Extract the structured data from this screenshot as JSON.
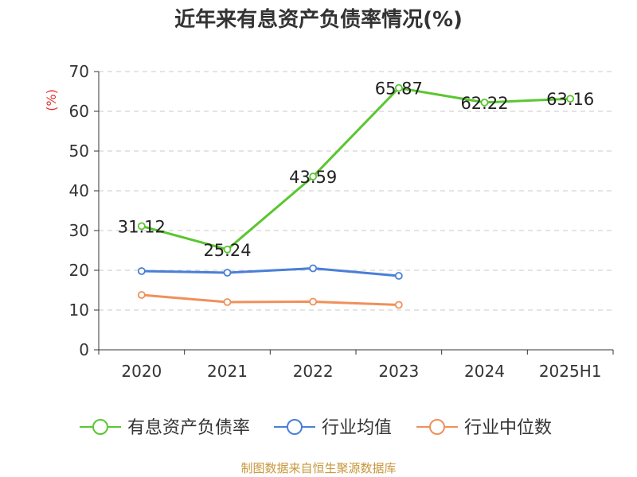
{
  "chart_data": {
    "type": "line",
    "title": "近年来有息资产负债率情况(%)",
    "ylabel": "(%)",
    "xlabel": "",
    "categories": [
      "2020",
      "2021",
      "2022",
      "2023",
      "2024",
      "2025H1"
    ],
    "ylim": [
      0,
      70
    ],
    "yticks": [
      0,
      10,
      20,
      30,
      40,
      50,
      60,
      70
    ],
    "grid": true,
    "legend_position": "bottom",
    "series": [
      {
        "name": "有息资产负债率",
        "color": "#5ac630",
        "values": [
          31.12,
          25.24,
          43.59,
          65.87,
          62.22,
          63.16
        ],
        "labels": [
          "31.12",
          "25.24",
          "43.59",
          "65.87",
          "62.22",
          "63.16"
        ]
      },
      {
        "name": "行业均值",
        "color": "#4a7fd8",
        "values": [
          19.8,
          19.4,
          20.5,
          18.6,
          null,
          null
        ]
      },
      {
        "name": "行业中位数",
        "color": "#f0905a",
        "values": [
          13.8,
          12.0,
          12.1,
          11.3,
          null,
          null
        ]
      }
    ],
    "source": "制图数据来自恒生聚源数据库"
  }
}
